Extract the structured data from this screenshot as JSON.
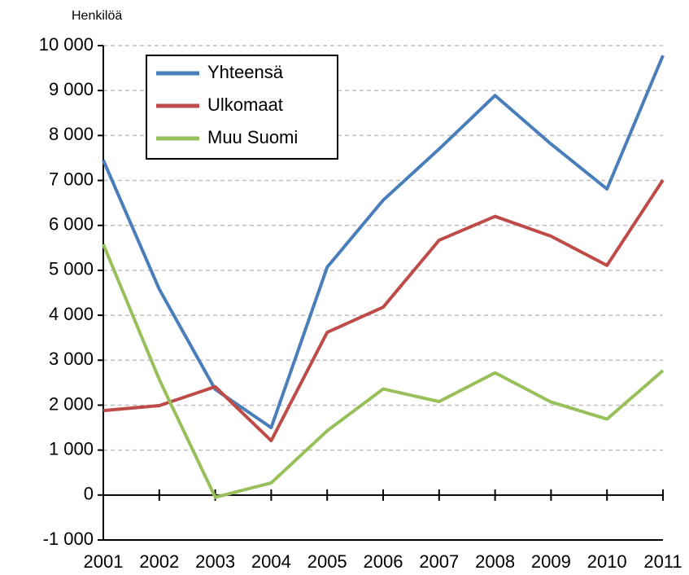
{
  "chart_data": {
    "type": "line",
    "y_axis_label": "Henkilöä",
    "categories": [
      "2001",
      "2002",
      "2003",
      "2004",
      "2005",
      "2006",
      "2007",
      "2008",
      "2009",
      "2010",
      "2011"
    ],
    "series": [
      {
        "name": "Yhteensä",
        "color": "#4a7ebb",
        "values": [
          7450,
          4580,
          2350,
          1500,
          5070,
          6560,
          7700,
          8890,
          7810,
          6810,
          9780
        ]
      },
      {
        "name": "Ulkomaat",
        "color": "#be4b48",
        "values": [
          1880,
          1990,
          2410,
          1210,
          3620,
          4180,
          5670,
          6200,
          5760,
          5110,
          7010
        ]
      },
      {
        "name": "Muu Suomi",
        "color": "#98c05a",
        "values": [
          5580,
          2570,
          -50,
          270,
          1430,
          2360,
          2080,
          2720,
          2070,
          1690,
          2770
        ]
      }
    ],
    "ylim": [
      -1000,
      10000
    ],
    "yticks": [
      {
        "value": -1000,
        "label": "-1 000"
      },
      0,
      {
        "value": 1000,
        "label": "1 000"
      },
      {
        "value": 2000,
        "label": "2 000"
      },
      {
        "value": 3000,
        "label": "3 000"
      },
      {
        "value": 4000,
        "label": "4 000"
      },
      {
        "value": 5000,
        "label": "5 000"
      },
      {
        "value": 6000,
        "label": "6 000"
      },
      {
        "value": 7000,
        "label": "7 000"
      },
      {
        "value": 8000,
        "label": "8 000"
      },
      {
        "value": 9000,
        "label": "9 000"
      },
      {
        "value": 10000,
        "label": "10 000"
      }
    ],
    "grid": true,
    "legend": "top-left"
  }
}
